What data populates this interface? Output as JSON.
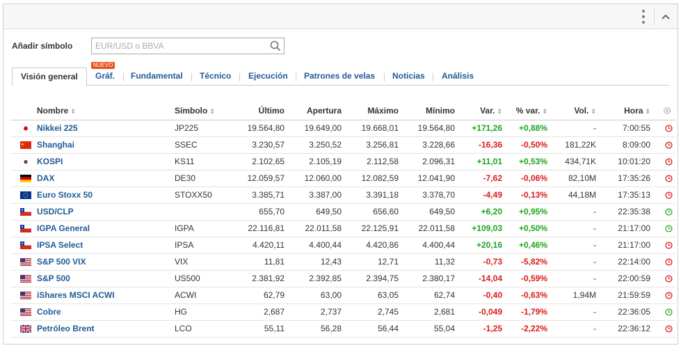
{
  "search": {
    "label": "Añadir símbolo",
    "placeholder": "EUR/USD o BBVA"
  },
  "tabs": [
    {
      "label": "Visión general",
      "active": true
    },
    {
      "label": "Gráf.",
      "badge": "NUEVO"
    },
    {
      "label": "Fundamental"
    },
    {
      "label": "Técnico"
    },
    {
      "label": "Ejecución"
    },
    {
      "label": "Patrones de velas"
    },
    {
      "label": "Noticias"
    },
    {
      "label": "Análisis"
    }
  ],
  "columns": {
    "name": "Nombre",
    "symbol": "Símbolo",
    "last": "Último",
    "open": "Apertura",
    "high": "Máximo",
    "low": "Mínimo",
    "change": "Var.",
    "pct": "% var.",
    "vol": "Vol.",
    "time": "Hora"
  },
  "rows": [
    {
      "flag": "japan",
      "name": "Nikkei 225",
      "symbol": "JP225",
      "last": "19.564,80",
      "open": "19.649,00",
      "high": "19.668,01",
      "low": "19.564,80",
      "change": "+171,26",
      "pct": "+0,88%",
      "vol": "-",
      "time": "7:00:55",
      "trend": "up",
      "status": "closed"
    },
    {
      "flag": "china",
      "name": "Shanghai",
      "symbol": "SSEC",
      "last": "3.230,57",
      "open": "3.250,52",
      "high": "3.256,81",
      "low": "3.228,66",
      "change": "-16,36",
      "pct": "-0,50%",
      "vol": "181,22K",
      "time": "8:09:00",
      "trend": "down",
      "status": "closed"
    },
    {
      "flag": "korea",
      "name": "KOSPI",
      "symbol": "KS11",
      "last": "2.102,65",
      "open": "2.105,19",
      "high": "2.112,58",
      "low": "2.096,31",
      "change": "+11,01",
      "pct": "+0,53%",
      "vol": "434,71K",
      "time": "10:01:20",
      "trend": "up",
      "status": "closed"
    },
    {
      "flag": "germany",
      "name": "DAX",
      "symbol": "DE30",
      "last": "12.059,57",
      "open": "12.060,00",
      "high": "12.082,59",
      "low": "12.041,90",
      "change": "-7,62",
      "pct": "-0,06%",
      "vol": "82,10M",
      "time": "17:35:26",
      "trend": "down",
      "status": "closed"
    },
    {
      "flag": "eu",
      "name": "Euro Stoxx 50",
      "symbol": "STOXX50",
      "last": "3.385,71",
      "open": "3.387,00",
      "high": "3.391,18",
      "low": "3.378,70",
      "change": "-4,49",
      "pct": "-0,13%",
      "vol": "44,18M",
      "time": "17:35:13",
      "trend": "down",
      "status": "closed"
    },
    {
      "flag": "chile",
      "name": "USD/CLP",
      "symbol": "",
      "last": "655,70",
      "open": "649,50",
      "high": "656,60",
      "low": "649,50",
      "change": "+6,20",
      "pct": "+0,95%",
      "vol": "-",
      "time": "22:35:38",
      "trend": "up",
      "status": "open"
    },
    {
      "flag": "chile",
      "name": "IGPA General",
      "symbol": "IGPA",
      "last": "22.116,81",
      "open": "22.011,58",
      "high": "22.125,91",
      "low": "22.011,58",
      "change": "+109,03",
      "pct": "+0,50%",
      "vol": "-",
      "time": "21:17:00",
      "trend": "up",
      "status": "open"
    },
    {
      "flag": "chile",
      "name": "IPSA Select",
      "symbol": "IPSA",
      "last": "4.420,11",
      "open": "4.400,44",
      "high": "4.420,86",
      "low": "4.400,44",
      "change": "+20,16",
      "pct": "+0,46%",
      "vol": "-",
      "time": "21:17:00",
      "trend": "up",
      "status": "closed"
    },
    {
      "flag": "usa",
      "name": "S&P 500 VIX",
      "symbol": "VIX",
      "last": "11,81",
      "open": "12,43",
      "high": "12,71",
      "low": "11,32",
      "change": "-0,73",
      "pct": "-5,82%",
      "vol": "-",
      "time": "22:14:00",
      "trend": "down",
      "status": "closed"
    },
    {
      "flag": "usa",
      "name": "S&P 500",
      "symbol": "US500",
      "last": "2.381,92",
      "open": "2.392,85",
      "high": "2.394,75",
      "low": "2.380,17",
      "change": "-14,04",
      "pct": "-0,59%",
      "vol": "-",
      "time": "22:00:59",
      "trend": "down",
      "status": "closed"
    },
    {
      "flag": "usa",
      "name": "iShares MSCI ACWI",
      "symbol": "ACWI",
      "last": "62,79",
      "open": "63,00",
      "high": "63,05",
      "low": "62,74",
      "change": "-0,40",
      "pct": "-0,63%",
      "vol": "1,94M",
      "time": "21:59:59",
      "trend": "down",
      "status": "closed"
    },
    {
      "flag": "usa",
      "name": "Cobre",
      "symbol": "HG",
      "last": "2,687",
      "open": "2,737",
      "high": "2,745",
      "low": "2,681",
      "change": "-0,049",
      "pct": "-1,79%",
      "vol": "-",
      "time": "22:36:05",
      "trend": "down",
      "status": "open"
    },
    {
      "flag": "uk",
      "name": "Petróleo Brent",
      "symbol": "LCO",
      "last": "55,11",
      "open": "56,28",
      "high": "56,44",
      "low": "55,04",
      "change": "-1,25",
      "pct": "-2,22%",
      "vol": "-",
      "time": "22:36:12",
      "trend": "down",
      "status": "closed"
    }
  ],
  "colors": {
    "positive": "#1ea41e",
    "negative": "#dd1a1a",
    "link": "#1f5a96",
    "badge": "#e8501c",
    "clock_open": "#2ea52e",
    "clock_closed": "#dd1a1a"
  }
}
